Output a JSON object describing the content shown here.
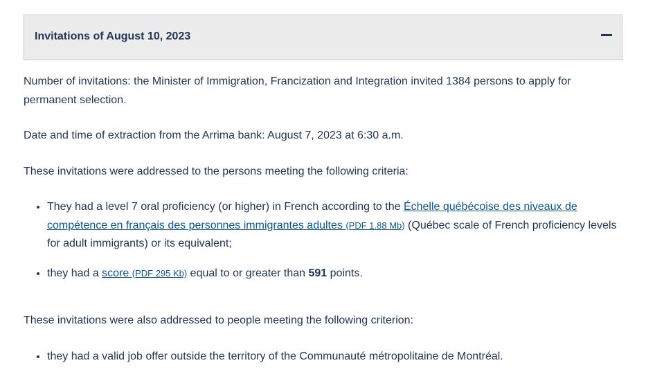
{
  "accordion": {
    "title": "Invitations of August 10, 2023",
    "toggle_icon": "minus-icon"
  },
  "content": {
    "p1": "Number of invitations: the Minister of Immigration, Francization and Integration invited 1384 persons to apply for permanent selection.",
    "p2": "Date and time of extraction from the Arrima bank: August 7, 2023 at 6:30 a.m.",
    "p3": "These invitations were addressed to the persons meeting the following criteria:",
    "criteria": {
      "item1": {
        "before": "They had a level 7 oral proficiency (or higher) in French according to the ",
        "link": "Échelle québécoise des niveaux de compétence en français des personnes immigrantes adultes",
        "link_note": "(PDF 1.88 Mb)",
        "after": " (Québec scale of French proficiency levels for adult immigrants) or its equivalent;"
      },
      "item2": {
        "before": "they had a ",
        "link": "score",
        "link_note": "(PDF 295 Kb)",
        "middle": " equal to or greater than ",
        "bold": "591",
        "after": " points."
      }
    },
    "p4": "These invitations were also addressed to people meeting the following criterion:",
    "criterion2": "they had a valid job offer outside the territory of the Communauté métropolitaine de Montréal."
  }
}
